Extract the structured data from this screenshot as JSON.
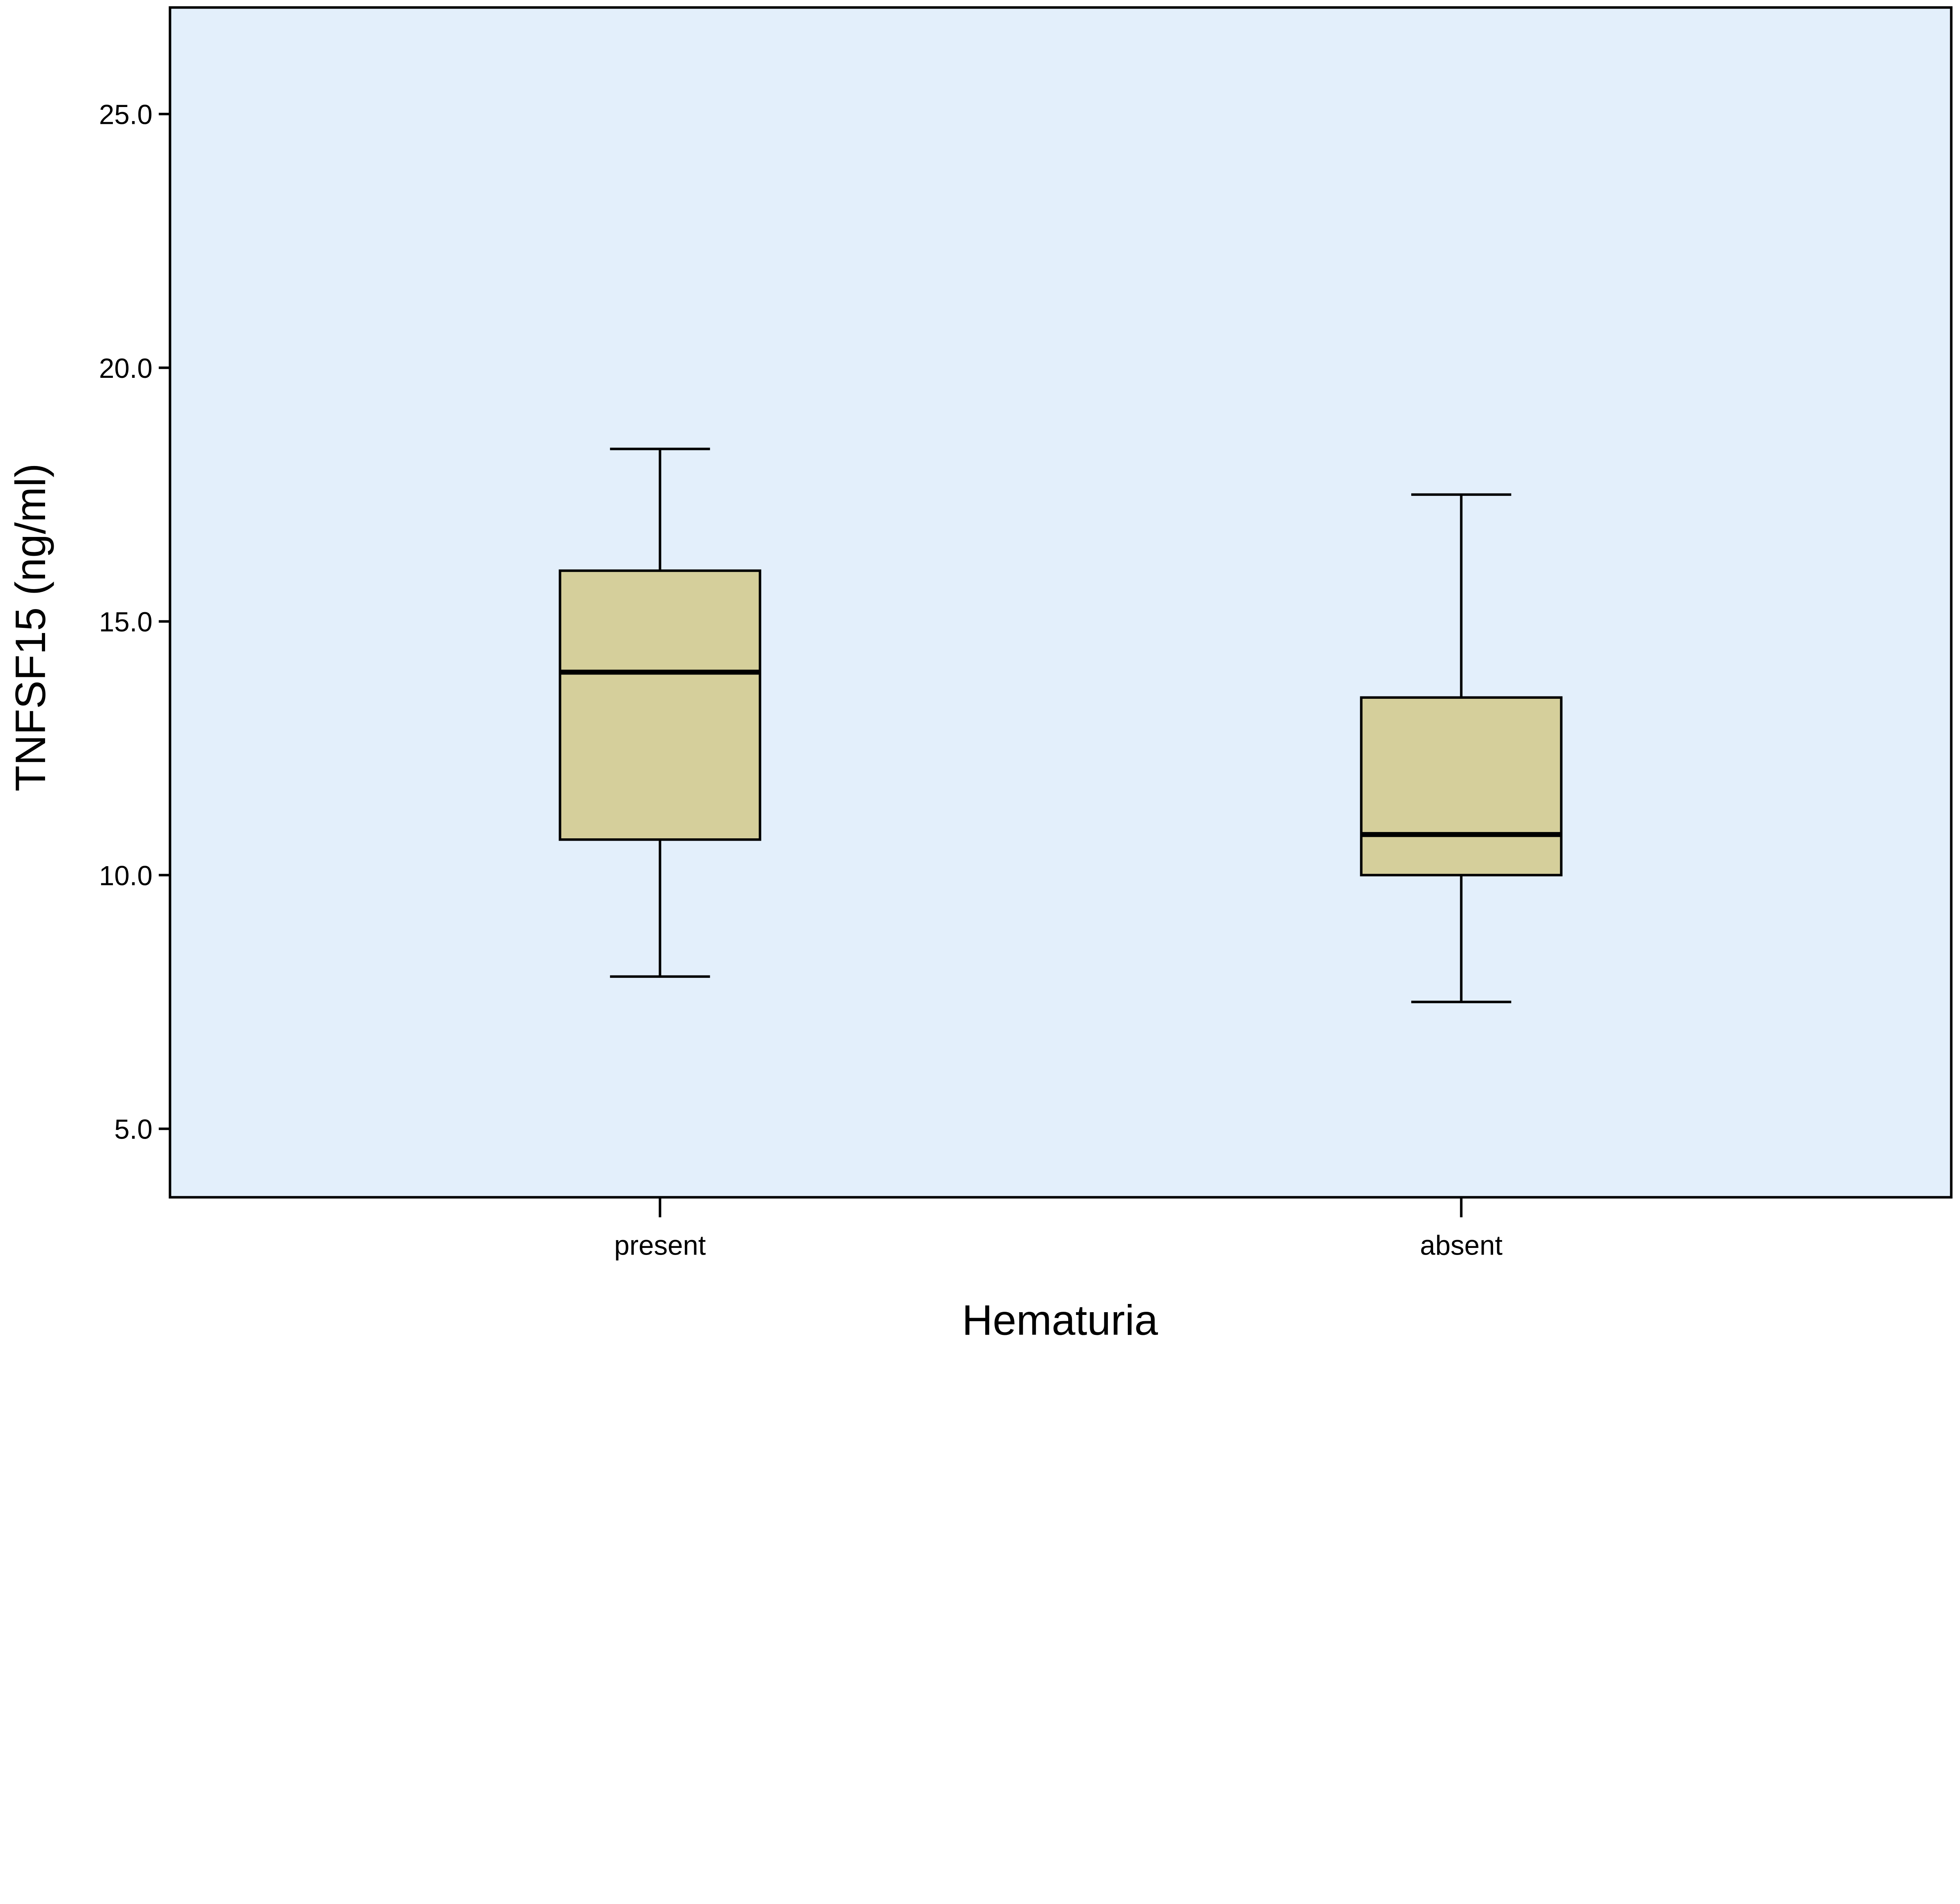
{
  "chart_data": {
    "type": "boxplot",
    "title": "",
    "xlabel": "Hematuria",
    "ylabel": "TNFSF15 (ng/ml)",
    "categories": [
      "present",
      "absent"
    ],
    "ylim": [
      3.65,
      27.1
    ],
    "yticks": [
      5.0,
      10.0,
      15.0,
      20.0,
      25.0
    ],
    "ytick_labels": [
      "5.0",
      "10.0",
      "15.0",
      "20.0",
      "25.0"
    ],
    "grid": false,
    "series": [
      {
        "category": "present",
        "whisker_low": 8.0,
        "q1": 10.7,
        "median": 14.0,
        "q3": 16.0,
        "whisker_high": 18.4
      },
      {
        "category": "absent",
        "whisker_low": 7.5,
        "q1": 10.0,
        "median": 10.8,
        "q3": 13.5,
        "whisker_high": 17.5
      }
    ],
    "colors": {
      "plot_background": "#E3EFFB",
      "box_fill": "#D5CF9B",
      "stroke": "#000000"
    }
  }
}
